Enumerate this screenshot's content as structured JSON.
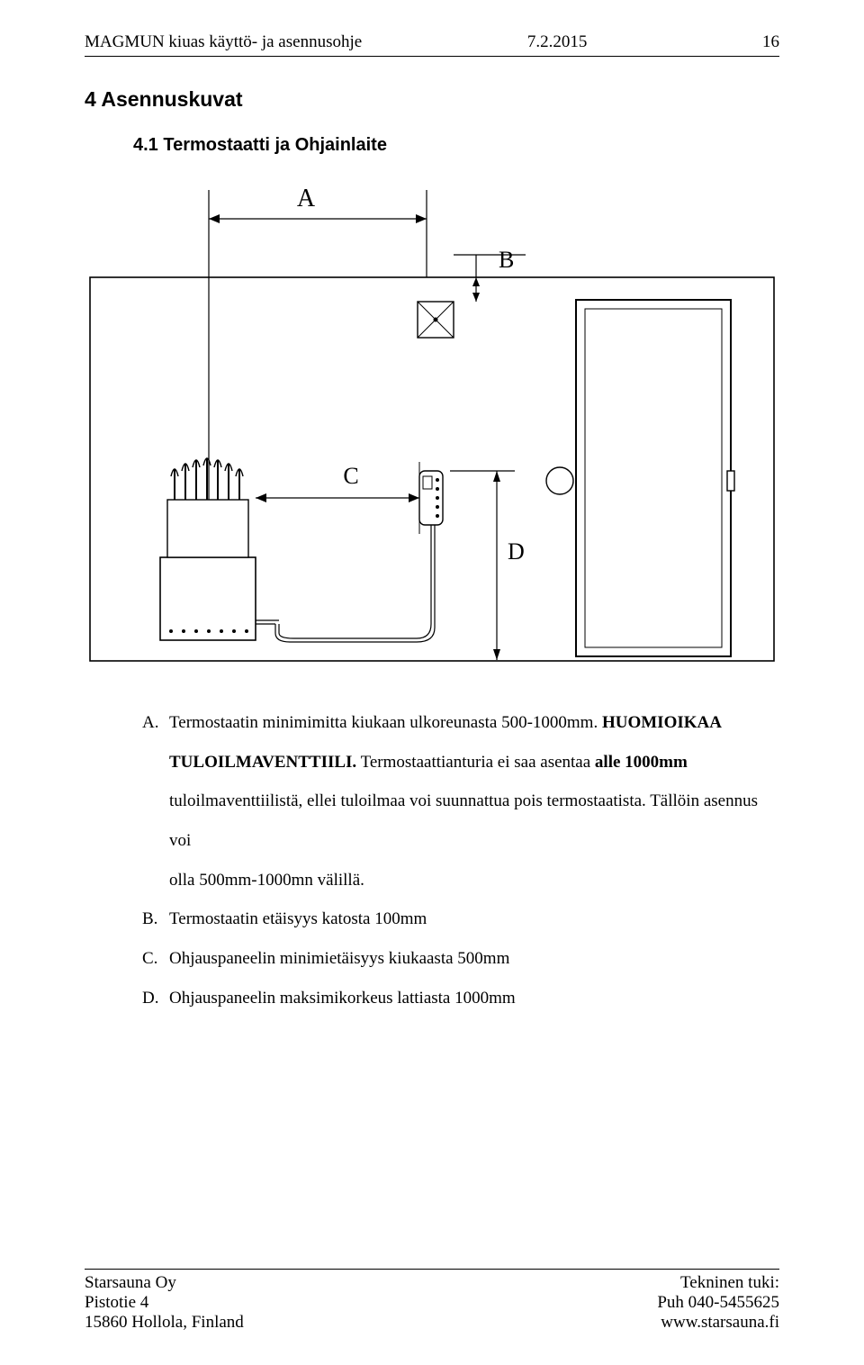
{
  "header": {
    "title": "MAGMUN kiuas käyttö- ja asennusohje",
    "date": "7.2.2015",
    "page_number": "16"
  },
  "section": {
    "heading": "4 Asennuskuvat",
    "subheading": "4.1 Termostaatti ja Ohjainlaite"
  },
  "diagram": {
    "labels": {
      "A": "A",
      "B": "B",
      "C": "C",
      "D": "D"
    },
    "stroke": "#000000",
    "stroke_thin": 1,
    "stroke_med": 1.6,
    "background": "#ffffff"
  },
  "list": {
    "items": [
      {
        "marker": "A.",
        "segments": [
          {
            "text": "Termostaatin minimimitta kiukaan ulkoreunasta 500-1000mm. ",
            "bold": false
          },
          {
            "text": "HUOMIOIKAA",
            "bold": true
          }
        ],
        "continuation": [
          {
            "segments": [
              {
                "text": "TULOILMAVENTTIILI.",
                "bold": true
              },
              {
                "text": " Termostaattianturia ei saa asentaa ",
                "bold": false
              },
              {
                "text": "alle 1000mm",
                "bold": true
              }
            ]
          },
          {
            "segments": [
              {
                "text": "tuloilmaventtiilistä, ellei tuloilmaa voi suunnattua pois termostaatista. Tällöin asennus voi",
                "bold": false
              }
            ]
          },
          {
            "segments": [
              {
                "text": "olla 500mm-1000mn välillä.",
                "bold": false
              }
            ]
          }
        ]
      },
      {
        "marker": "B.",
        "segments": [
          {
            "text": "Termostaatin etäisyys katosta 100mm",
            "bold": false
          }
        ]
      },
      {
        "marker": "C.",
        "segments": [
          {
            "text": "Ohjauspaneelin minimietäisyys kiukaasta 500mm",
            "bold": false
          }
        ]
      },
      {
        "marker": "D.",
        "segments": [
          {
            "text": "Ohjauspaneelin maksimikorkeus lattiasta 1000mm",
            "bold": false
          }
        ]
      }
    ]
  },
  "footer": {
    "left": [
      "Starsauna Oy",
      "Pistotie 4",
      "15860 Hollola, Finland"
    ],
    "right": [
      "Tekninen tuki:",
      "Puh 040-5455625",
      "www.starsauna.fi"
    ]
  }
}
